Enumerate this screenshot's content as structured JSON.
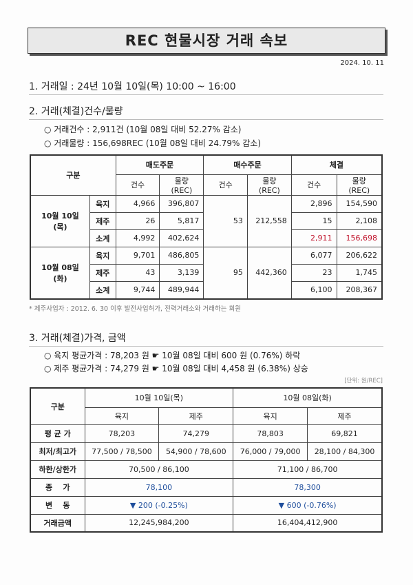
{
  "title": "REC 현물시장 거래 속보",
  "date": "2024. 10. 11",
  "section1": "1. 거래일 :  24년 10월 10일(목) 10:00 ~ 16:00",
  "section2": "2. 거래(체결)건수/물량",
  "bullets2": [
    "○ 거래건수 : 2,911건 (10월 08일 대비 52.27% 감소)",
    "○ 거래물량 : 156,698REC (10월 08일 대비 24.79% 감소)"
  ],
  "table1": {
    "h_gubun": "구분",
    "h_sell": "매도주문",
    "h_buy": "매수주문",
    "h_deal": "체결",
    "h_cnt": "건수",
    "h_vol": "물량 (REC)",
    "groups": [
      {
        "date": "10월 10일(목)",
        "buy_cnt": "53",
        "buy_vol": "212,558",
        "rows": [
          {
            "type": "육지",
            "sell_cnt": "4,966",
            "sell_vol": "396,807",
            "deal_cnt": "2,896",
            "deal_vol": "154,590"
          },
          {
            "type": "제주",
            "sell_cnt": "26",
            "sell_vol": "5,817",
            "deal_cnt": "15",
            "deal_vol": "2,108"
          },
          {
            "type": "소계",
            "sell_cnt": "4,992",
            "sell_vol": "402,624",
            "deal_cnt": "2,911",
            "deal_vol": "156,698"
          }
        ]
      },
      {
        "date": "10월 08일(화)",
        "buy_cnt": "95",
        "buy_vol": "442,360",
        "rows": [
          {
            "type": "육지",
            "sell_cnt": "9,701",
            "sell_vol": "486,805",
            "deal_cnt": "6,077",
            "deal_vol": "206,622"
          },
          {
            "type": "제주",
            "sell_cnt": "43",
            "sell_vol": "3,139",
            "deal_cnt": "23",
            "deal_vol": "1,745"
          },
          {
            "type": "소계",
            "sell_cnt": "9,744",
            "sell_vol": "489,944",
            "deal_cnt": "6,100",
            "deal_vol": "208,367"
          }
        ]
      }
    ]
  },
  "footnote": "* 제주사업자 : 2012. 6. 30 이후 발전사업허가, 전력거래소와 거래하는 회원",
  "section3": "3. 거래(체결)가격, 금액",
  "bullets3": [
    "○ 육지 평균가격 : 78,203 원 ☛ 10월 08일 대비 600 원 (0.76%) 하락",
    "○ 제주 평균가격 : 74,279 원 ☛ 10월 08일 대비 4,458 원 (6.38%) 상승"
  ],
  "unit": "[단위: 원/REC]",
  "table2": {
    "h_gubun": "구분",
    "d1": "10월 10일(목)",
    "d2": "10월 08일(화)",
    "land": "육지",
    "jeju": "제주",
    "avg": {
      "label": "평 균 가",
      "v": [
        "78,203",
        "74,279",
        "78,803",
        "69,821"
      ]
    },
    "minmax": {
      "label": "최저/최고가",
      "v": [
        "77,500 / 78,500",
        "54,900 / 78,600",
        "76,000 / 79,000",
        "28,100 / 84,300"
      ]
    },
    "limit": {
      "label": "하한/상한가",
      "v": [
        "70,500 / 86,100",
        "71,100 / 86,700"
      ]
    },
    "close": {
      "label": "종    가",
      "v": [
        "78,100",
        "78,300"
      ]
    },
    "change": {
      "label": "변    동",
      "v": [
        "▼ 200 (-0.25%)",
        "▼ 600 (-0.76%)"
      ]
    },
    "amount": {
      "label": "거래금액",
      "v": [
        "12,245,984,200",
        "16,404,412,900"
      ]
    }
  },
  "colors": {
    "highlight_red": "#c0142c",
    "highlight_blue": "#1f4e9c"
  }
}
